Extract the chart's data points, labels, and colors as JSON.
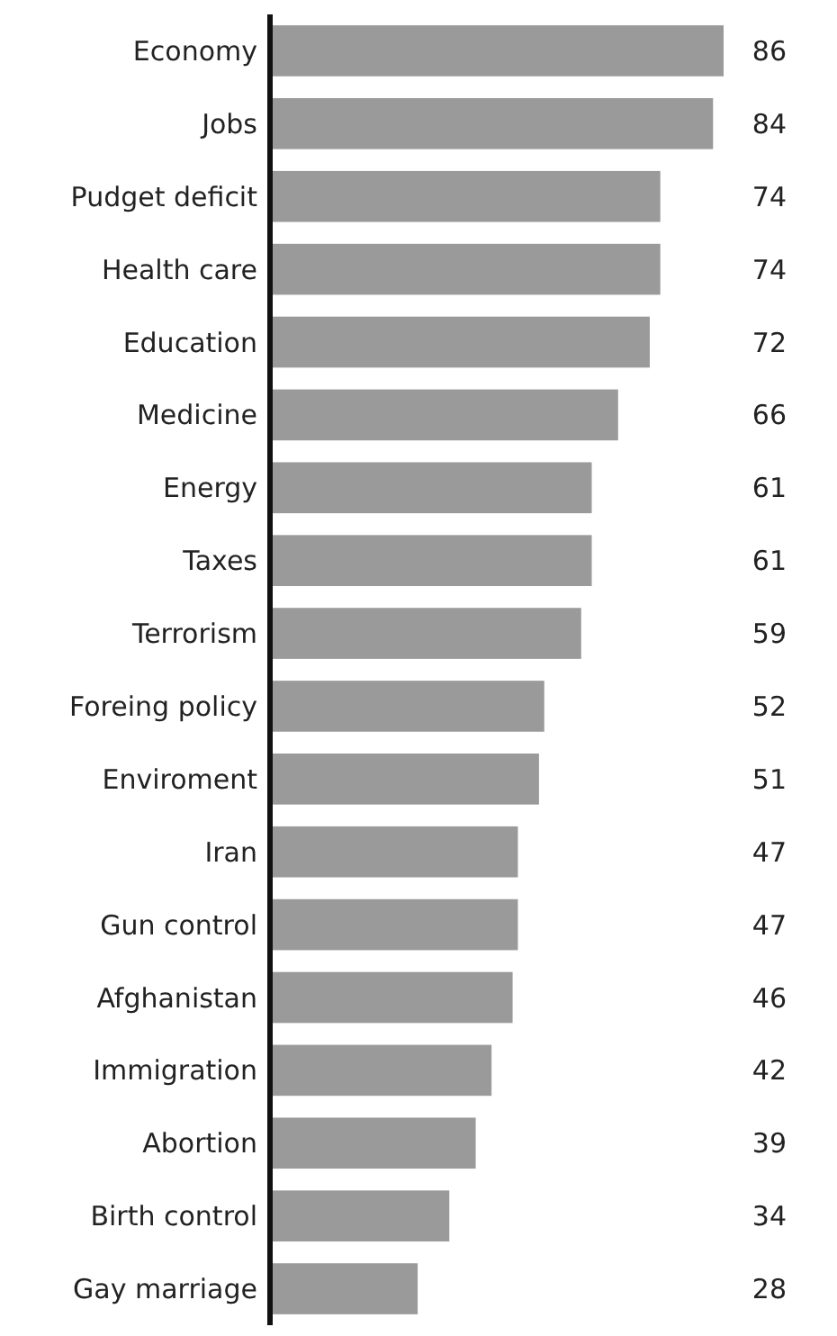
{
  "chart_data": {
    "type": "bar",
    "orientation": "horizontal",
    "categories": [
      "Economy",
      "Jobs",
      "Pudget deficit",
      "Health care",
      "Education",
      "Medicine",
      "Energy",
      "Taxes",
      "Terrorism",
      "Foreing policy",
      "Enviroment",
      "Iran",
      "Gun control",
      "Afghanistan",
      "Immigration",
      "Abortion",
      "Birth control",
      "Gay marriage"
    ],
    "values": [
      86,
      84,
      74,
      74,
      72,
      66,
      61,
      61,
      59,
      52,
      51,
      47,
      47,
      46,
      42,
      39,
      34,
      28
    ],
    "color": "#9a9a9a",
    "data_labels": true
  }
}
